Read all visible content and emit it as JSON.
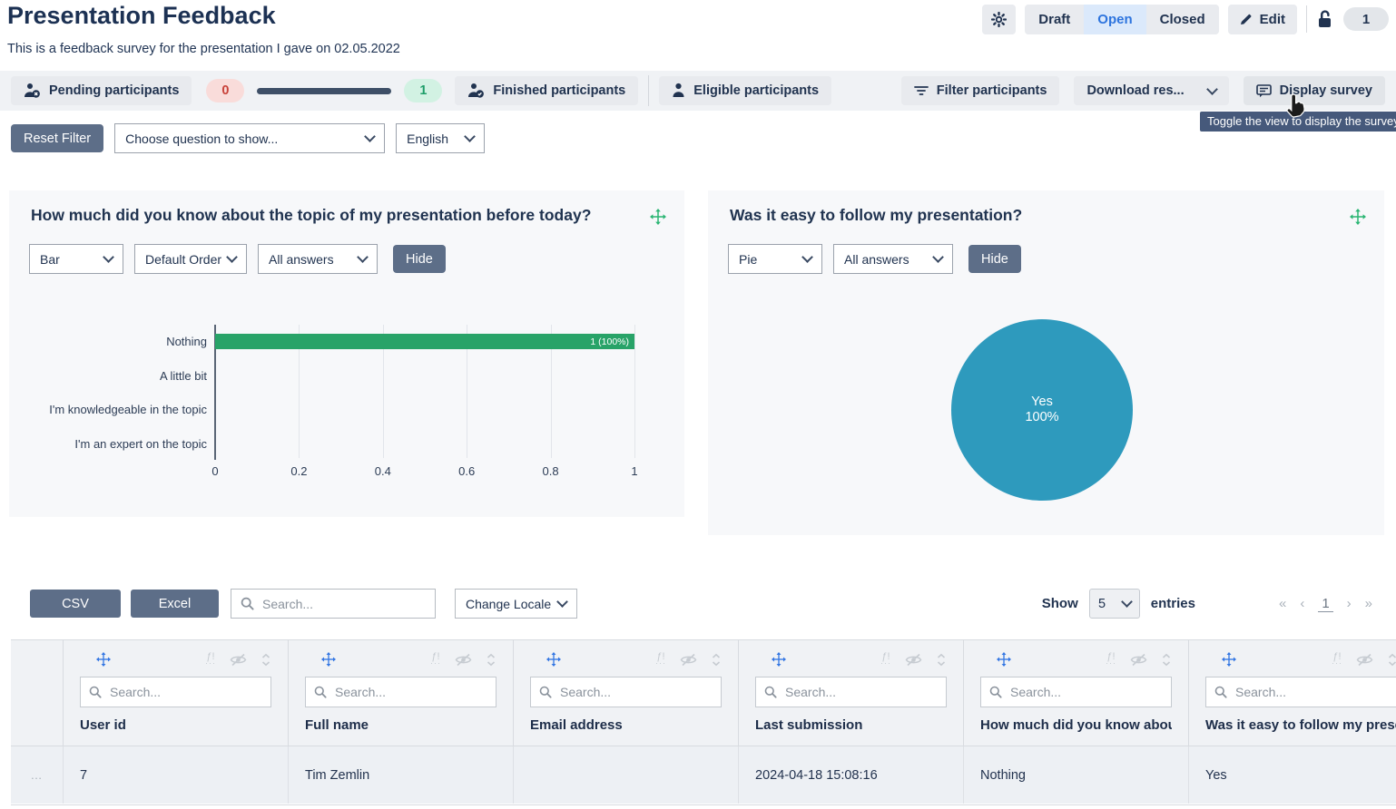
{
  "header": {
    "title": "Presentation Feedback",
    "subtitle": "This is a feedback survey for the presentation I gave on 02.05.2022",
    "status": {
      "draft": "Draft",
      "open": "Open",
      "closed": "Closed"
    },
    "edit_label": "Edit",
    "participant_badge": "1"
  },
  "participants_bar": {
    "pending_label": "Pending participants",
    "pending_count": "0",
    "finished_count": "1",
    "finished_label": "Finished participants",
    "eligible_label": "Eligible participants",
    "filter_label": "Filter participants",
    "download_label": "Download res...",
    "display_label": "Display survey",
    "display_tooltip": "Toggle the view to display the survey."
  },
  "filter_row": {
    "reset_label": "Reset Filter",
    "question_select": "Choose question to show...",
    "language_select": "English"
  },
  "charts": {
    "left": {
      "title": "How much did you know about the topic of my presentation before today?",
      "type_select": "Bar",
      "order_select": "Default Order",
      "answers_select": "All answers",
      "hide_label": "Hide"
    },
    "right": {
      "title": "Was it easy to follow my presentation?",
      "type_select": "Pie",
      "answers_select": "All answers",
      "hide_label": "Hide"
    }
  },
  "chart_data": [
    {
      "type": "bar",
      "orientation": "horizontal",
      "title": "How much did you know about the topic of my presentation before today?",
      "categories": [
        "Nothing",
        "A little bit",
        "I'm knowledgeable in the topic",
        "I'm an expert on the topic"
      ],
      "values": [
        1,
        0,
        0,
        0
      ],
      "value_labels": [
        "1 (100%)",
        "",
        "",
        ""
      ],
      "xticks": [
        "0",
        "0.2",
        "0.4",
        "0.6",
        "0.8",
        "1"
      ],
      "xlim": [
        0,
        1
      ],
      "bar_color": "#28a368",
      "grid": true
    },
    {
      "type": "pie",
      "title": "Was it easy to follow my presentation?",
      "slices": [
        {
          "label": "Yes",
          "value": 1,
          "percent": "100%",
          "color": "#2e9abd"
        }
      ]
    }
  ],
  "table": {
    "csv_label": "CSV",
    "excel_label": "Excel",
    "search_placeholder": "Search...",
    "change_locale_label": "Change Locale",
    "show_label": "Show",
    "page_size": "5",
    "entries_label": "entries",
    "pagination": {
      "first": "«",
      "prev": "‹",
      "page": "1",
      "next": "›",
      "last": "»"
    },
    "column_search_placeholder": "Search...",
    "columns": [
      {
        "title": "User id"
      },
      {
        "title": "Full name"
      },
      {
        "title": "Email address"
      },
      {
        "title": "Last submission"
      },
      {
        "title": "How much did you know about the topic of my presentation before today?"
      },
      {
        "title": "Was it easy to follow my presentation?"
      }
    ],
    "rows": [
      {
        "expander": "…",
        "user_id": "7",
        "full_name": "Tim Zemlin",
        "email": "",
        "last_submission": "2024-04-18 15:08:16",
        "knowledge_answer": "Nothing",
        "easy_answer": "Yes"
      }
    ]
  }
}
